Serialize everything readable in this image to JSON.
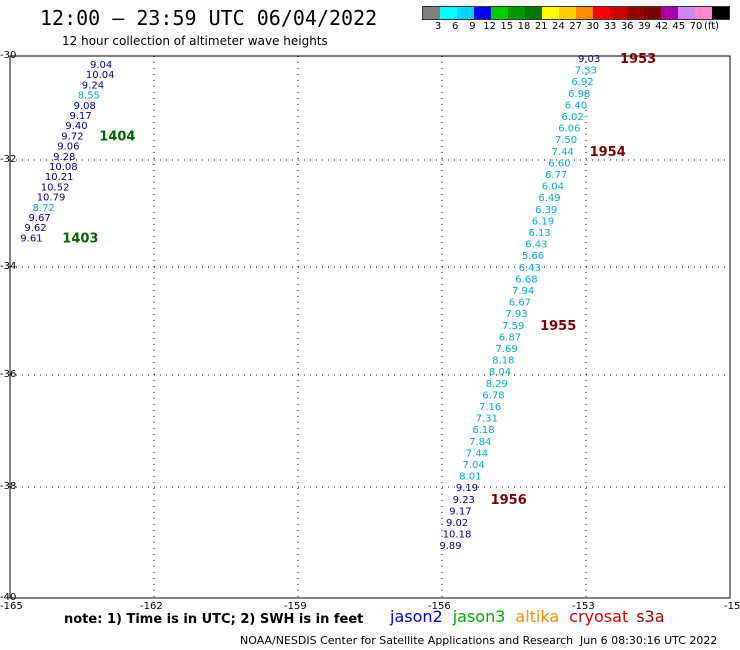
{
  "header": {
    "title": "12:00 – 23:59 UTC 06/04/2022",
    "subtitle": "12 hour collection of altimeter wave heights"
  },
  "legend": {
    "unit": "(ft)",
    "colors": [
      "#808080",
      "#00ffff",
      "#00d4ff",
      "#0000ff",
      "#00cc00",
      "#009900",
      "#007700",
      "#ffff00",
      "#ffcc00",
      "#ff8c00",
      "#ff0000",
      "#cc0000",
      "#990000",
      "#7a0000",
      "#aa00aa",
      "#cc88ee",
      "#ff88cc",
      "#000000"
    ],
    "ticks": [
      "3",
      "6",
      "9",
      "12",
      "15",
      "18",
      "21",
      "24",
      "27",
      "30",
      "33",
      "36",
      "39",
      "42",
      "45",
      "70"
    ]
  },
  "axes": {
    "lat_labels": [
      "-30",
      "-32",
      "-34",
      "-36",
      "-38",
      "-40"
    ],
    "lon_labels": [
      "-165",
      "-162",
      "-159",
      "-156",
      "-153",
      "-15"
    ]
  },
  "tracks": [
    {
      "id": "west",
      "values": [
        "9.04",
        "10.04",
        "9.24",
        "8.55",
        "9.08",
        "9.17",
        "9.40",
        "9.72",
        "9.06",
        "9.28",
        "10.08",
        "10.21",
        "10.52",
        "10.79",
        "8.72",
        "9.67",
        "9.62",
        "9.61"
      ],
      "colors": [
        "#00008b",
        "#00008b",
        "#00008b",
        "#00aadd",
        "#00008b",
        "#00008b",
        "#00008b",
        "#00008b",
        "#00008b",
        "#00008b",
        "#00008b",
        "#00008b",
        "#00008b",
        "#00008b",
        "#00aadd",
        "#00008b",
        "#00008b",
        "#00008b"
      ],
      "time_labels": [
        {
          "text": "1404",
          "color": "#006600"
        },
        {
          "text": "1403",
          "color": "#006600"
        }
      ]
    },
    {
      "id": "east",
      "values": [
        "9.03",
        "7.33",
        "6.92",
        "6.98",
        "6.40",
        "6.02",
        "6.06",
        "7.50",
        "7.44",
        "6.60",
        "6.77",
        "6.04",
        "6.49",
        "6.39",
        "6.19",
        "6.13",
        "6.43",
        "5.66",
        "6.43",
        "6.68",
        "7.94",
        "6.67",
        "7.93",
        "7.59",
        "6.87",
        "7.69",
        "8.18",
        "8.04",
        "8.29",
        "6.78",
        "7.16",
        "7.31",
        "6.18",
        "7.84",
        "7.44",
        "7.04",
        "8.01",
        "9.19",
        "9.23",
        "9.17",
        "9.02",
        "10.18",
        "9.89"
      ],
      "colors": [
        "#00008b",
        "#00aadd",
        "#00aadd",
        "#00aadd",
        "#00aadd",
        "#00aadd",
        "#00aadd",
        "#00aadd",
        "#00aadd",
        "#00aadd",
        "#00aadd",
        "#00aadd",
        "#00aadd",
        "#00aadd",
        "#00aadd",
        "#00aadd",
        "#00aadd",
        "#00aadd",
        "#00aadd",
        "#00aadd",
        "#00aadd",
        "#00aadd",
        "#00aadd",
        "#00aadd",
        "#00aadd",
        "#00aadd",
        "#00aadd",
        "#00aadd",
        "#00aadd",
        "#00aadd",
        "#00aadd",
        "#00aadd",
        "#00aadd",
        "#00aadd",
        "#00aadd",
        "#00aadd",
        "#00aadd",
        "#00008b",
        "#00008b",
        "#00008b",
        "#00008b",
        "#00008b",
        "#00008b"
      ],
      "time_labels": [
        {
          "text": "1953",
          "color": "#7a0000"
        },
        {
          "text": "1954",
          "color": "#7a0000"
        },
        {
          "text": "1955",
          "color": "#7a0000"
        },
        {
          "text": "1956",
          "color": "#7a0000"
        }
      ]
    }
  ],
  "note": "note:  1) Time is in UTC;  2) SWH is in feet",
  "satellites": [
    {
      "name": "jason2",
      "color": "#0000cc"
    },
    {
      "name": "jason3",
      "color": "#00aa00"
    },
    {
      "name": "altika",
      "color": "#ff8c00"
    },
    {
      "name": "cryosat",
      "color": "#dd0000"
    },
    {
      "name": "s3a",
      "color": "#990000"
    }
  ],
  "footer": {
    "credit": "NOAA/NESDIS Center for Satellite Applications and Research",
    "timestamp": "Jun  6 08:30:16 UTC 2022"
  }
}
